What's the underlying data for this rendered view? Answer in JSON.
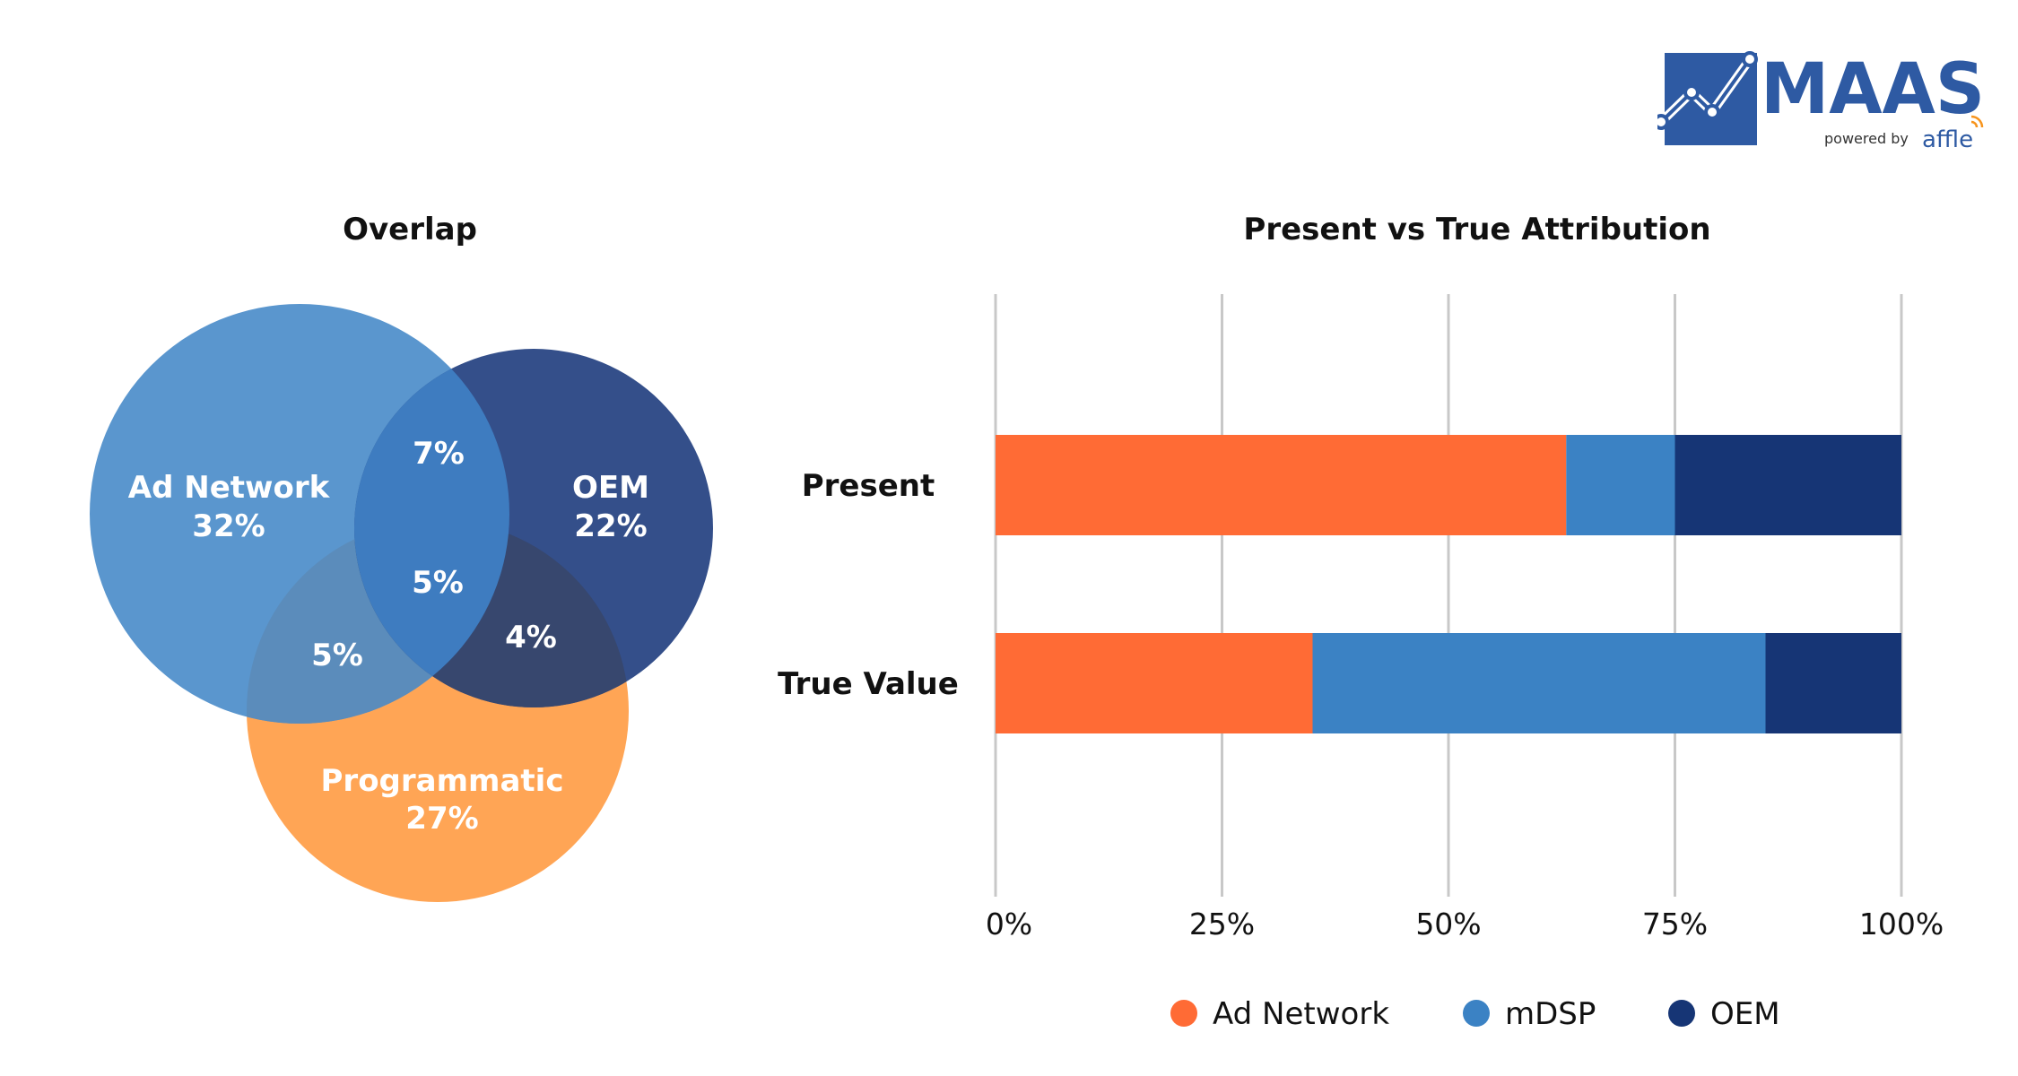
{
  "brand": {
    "logo_text": "MAAS",
    "tagline_prefix": "powered by",
    "tagline_brand": "affle",
    "logo_color": "#2e5aa3",
    "accent": "#f7941d"
  },
  "chart_data": [
    {
      "type": "venn",
      "title": "Overlap",
      "sets": [
        {
          "name": "Ad Network",
          "value": "32%",
          "color": "#4a8ccb"
        },
        {
          "name": "OEM",
          "value": "22%",
          "color": "#1d3c7a"
        },
        {
          "name": "Programmatic",
          "value": "27%",
          "color": "#ff9a3c"
        }
      ],
      "intersections": [
        {
          "sets": [
            "Ad Network",
            "OEM"
          ],
          "value": "7%"
        },
        {
          "sets": [
            "Ad Network",
            "OEM",
            "Programmatic"
          ],
          "value": "5%"
        },
        {
          "sets": [
            "Ad Network",
            "Programmatic"
          ],
          "value": "5%"
        },
        {
          "sets": [
            "OEM",
            "Programmatic"
          ],
          "value": "4%"
        }
      ]
    },
    {
      "type": "bar",
      "orientation": "horizontal",
      "stacked": true,
      "title": "Present vs True Attribution",
      "categories": [
        "Present",
        "True Value"
      ],
      "series": [
        {
          "name": "Ad Network",
          "values": [
            63,
            35
          ],
          "color": "#ff6b35"
        },
        {
          "name": "mDSP",
          "values": [
            12,
            50
          ],
          "color": "#3b82c4"
        },
        {
          "name": "OEM",
          "values": [
            25,
            15
          ],
          "color": "#163575"
        }
      ],
      "xlim": [
        0,
        100
      ],
      "xticks": [
        0,
        25,
        50,
        75,
        100
      ],
      "xtick_labels": [
        "0%",
        "25%",
        "50%",
        "75%",
        "100%"
      ],
      "grid": true,
      "legend": "bottom"
    }
  ]
}
